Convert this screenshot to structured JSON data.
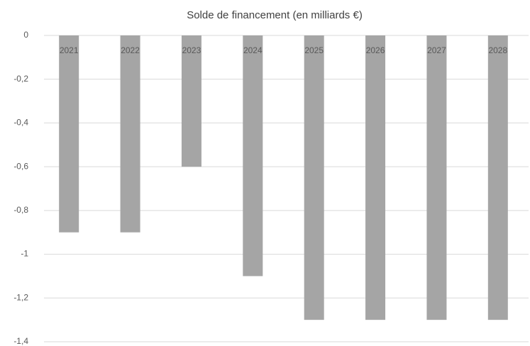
{
  "chart_data": {
    "type": "bar",
    "title": "Solde de financement (en milliards €)",
    "categories": [
      "2021",
      "2022",
      "2023",
      "2024",
      "2025",
      "2026",
      "2027",
      "2028"
    ],
    "values": [
      -0.9,
      -0.9,
      -0.6,
      -1.1,
      -1.3,
      -1.3,
      -1.3,
      -1.3
    ],
    "color": "#a5a5a5",
    "ylim": [
      -1.4,
      0
    ],
    "yticks": [
      0,
      {
        "value": -0.2,
        "label": "-0,2"
      },
      {
        "value": -0.4,
        "label": "-0,4"
      },
      {
        "value": -0.6,
        "label": "-0,6"
      },
      {
        "value": -0.8,
        "label": "-0,8"
      },
      -1,
      {
        "value": -1.2,
        "label": "-1,2"
      },
      {
        "value": -1.4,
        "label": "-1,4"
      }
    ],
    "grid": true
  }
}
